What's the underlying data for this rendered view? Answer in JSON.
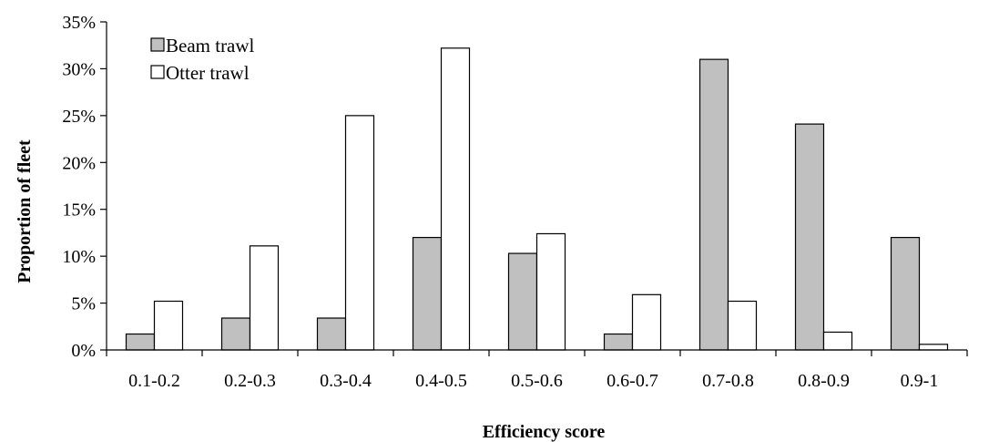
{
  "chart_data": {
    "type": "bar",
    "xlabel": "Efficiency score",
    "ylabel": "Proportion of fleet",
    "categories": [
      "0.1-0.2",
      "0.2-0.3",
      "0.3-0.4",
      "0.4-0.5",
      "0.5-0.6",
      "0.6-0.7",
      "0.7-0.8",
      "0.8-0.9",
      "0.9-1"
    ],
    "series": [
      {
        "name": "Beam trawl",
        "color": "#c0c0c0",
        "values": [
          1.7,
          3.4,
          3.4,
          12.0,
          10.3,
          1.7,
          31.0,
          24.1,
          12.0
        ]
      },
      {
        "name": "Otter trawl",
        "color": "#ffffff",
        "values": [
          5.2,
          11.1,
          25.0,
          32.2,
          12.4,
          5.9,
          5.2,
          1.9,
          0.6
        ]
      }
    ],
    "ylim": [
      0,
      35
    ],
    "yticks": [
      0,
      5,
      10,
      15,
      20,
      25,
      30,
      35
    ],
    "ytick_labels": [
      "0%",
      "5%",
      "10%",
      "15%",
      "20%",
      "25%",
      "30%",
      "35%"
    ],
    "grid": false,
    "legend_position": "top-left"
  }
}
